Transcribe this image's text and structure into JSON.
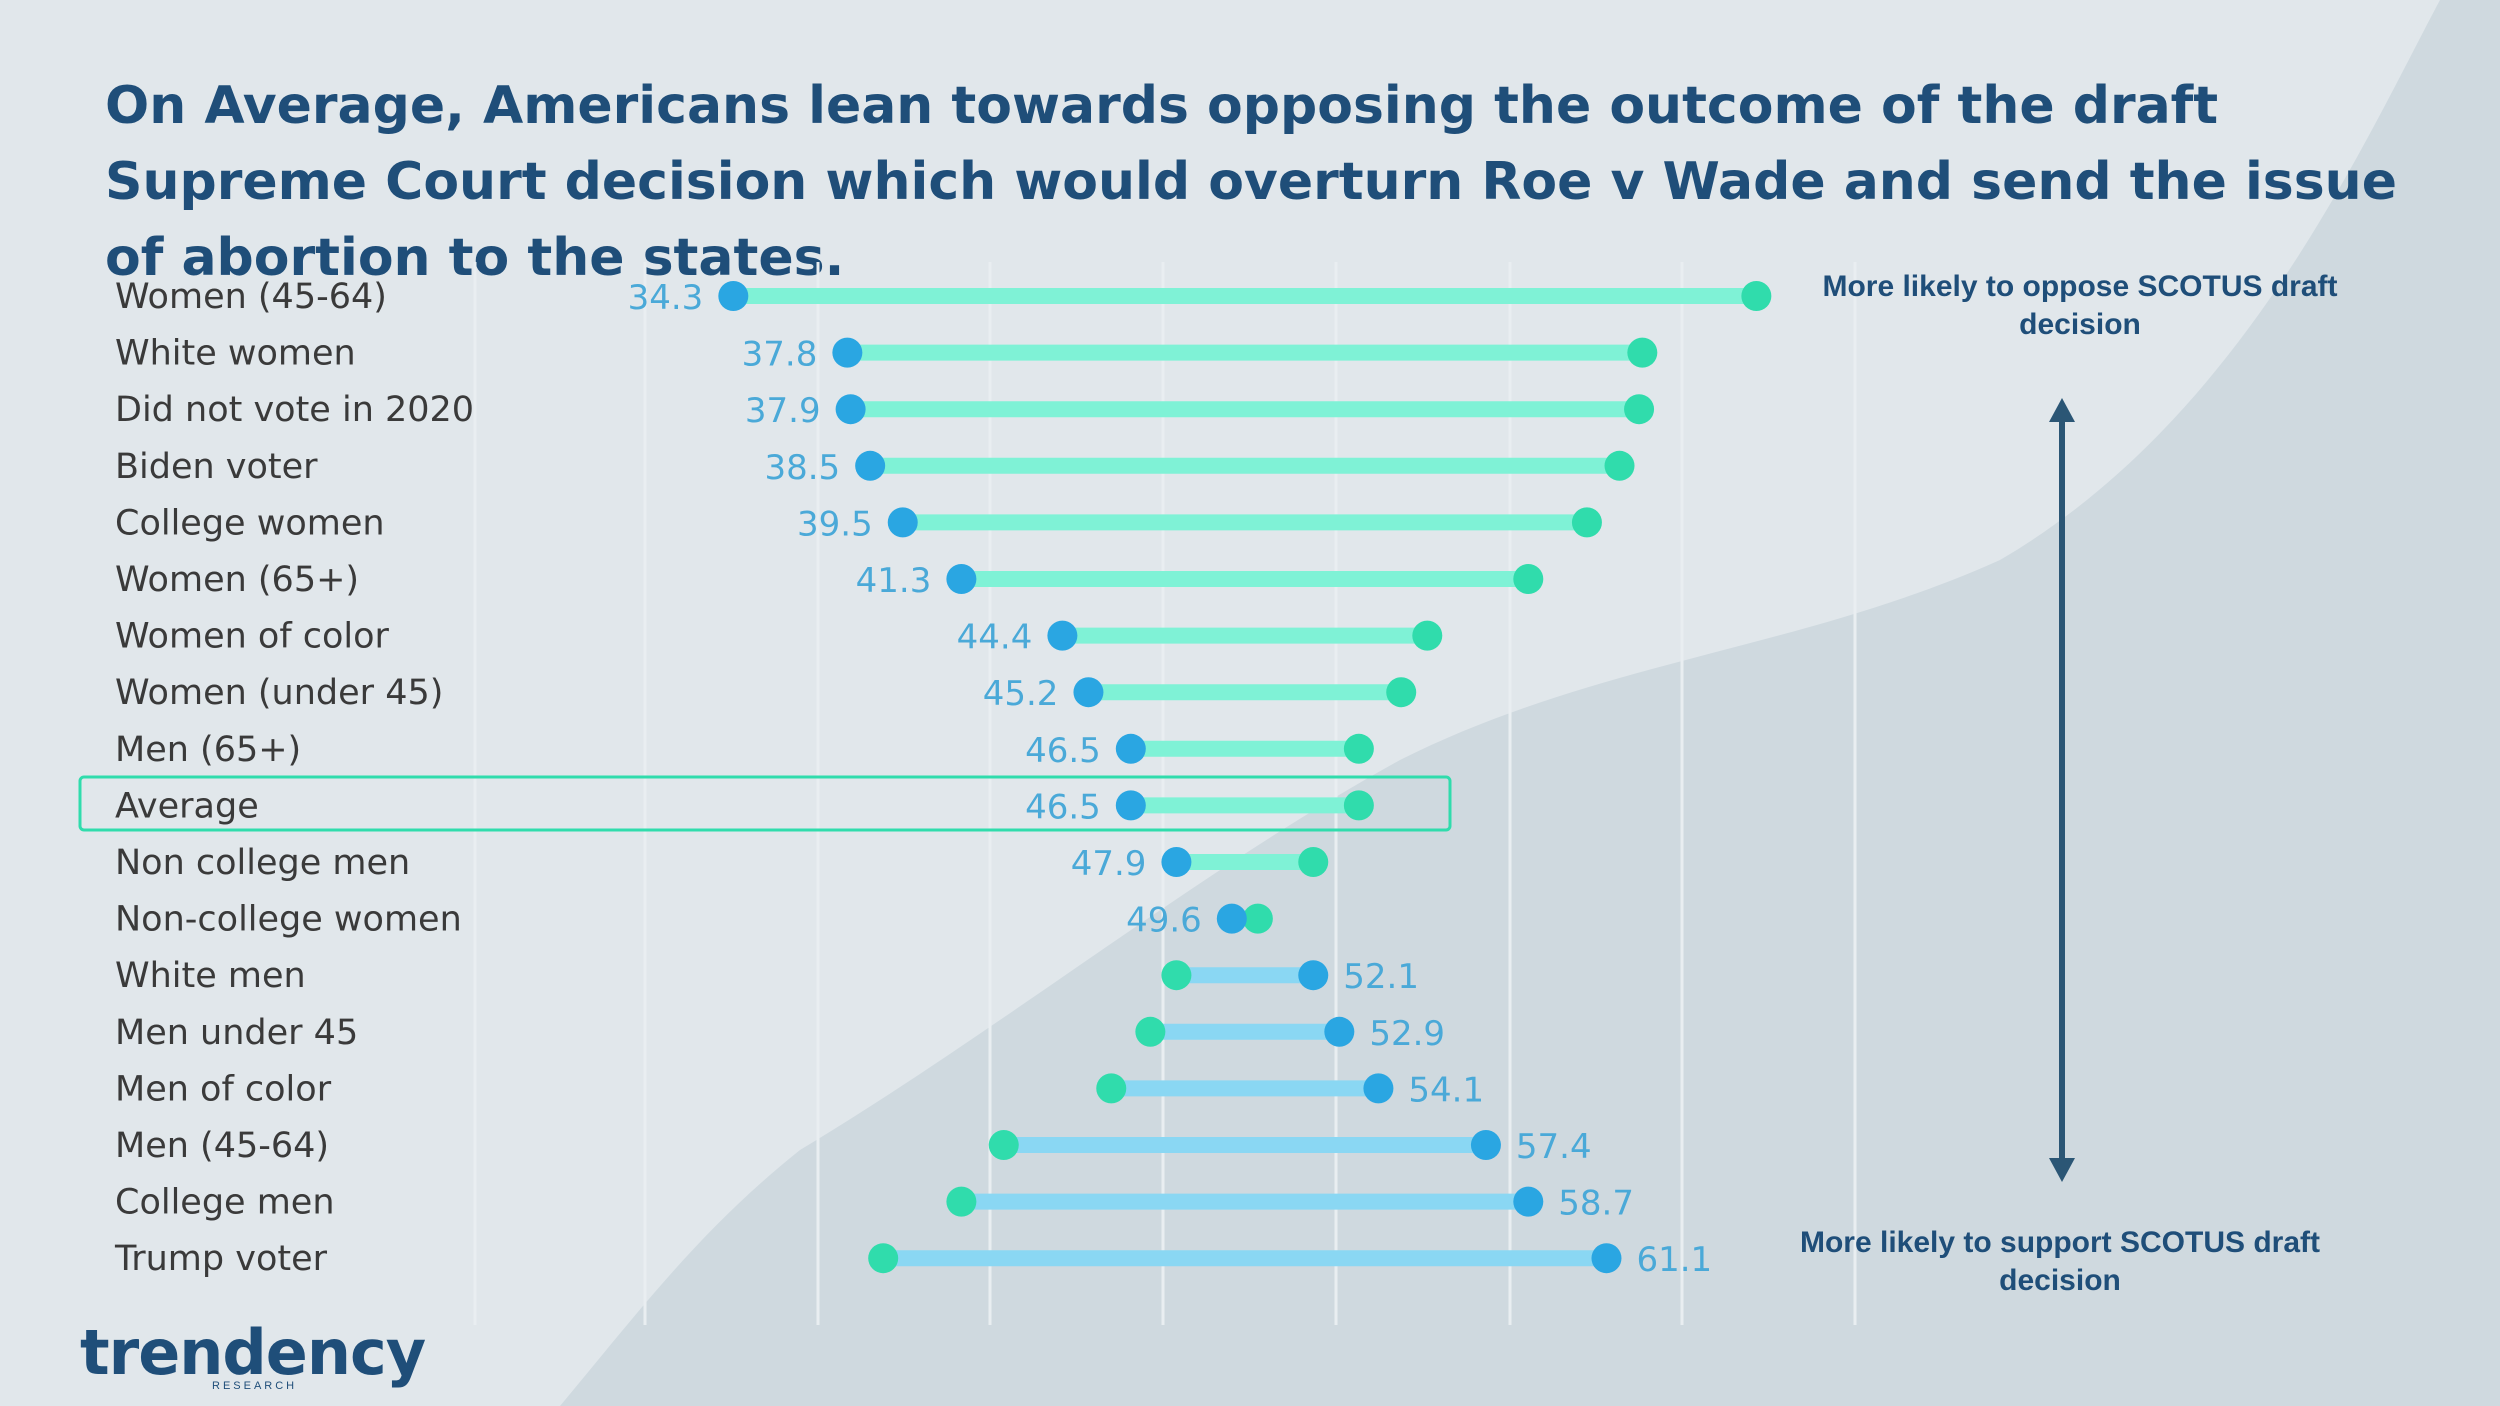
{
  "title": "On Average, Americans lean towards opposing the outcome of the draft  Supreme Court decision which would overturn Roe v Wade and send the issue of abortion to the states.",
  "notes": {
    "oppose": "More likely to oppose SCOTUS draft decision",
    "support": "More likely to support SCOTUS draft decision"
  },
  "logo": {
    "text": "trendency",
    "subtitle": "RESEARCH"
  },
  "colors": {
    "background": "#cfd9df",
    "background_light": "#e1e7eb",
    "title": "#1f4e79",
    "teal": "#30dcac",
    "teal_bar": "#7ff2d6",
    "blue": "#2aa6e2",
    "blue_bar": "#8ad7f3",
    "value_text": "#4aa9d8",
    "highlight_border": "#30dcac"
  },
  "chart_data": {
    "type": "dumbbell",
    "title": "On Average, Americans lean towards opposing the outcome of the draft  Supreme Court decision which would overturn Roe v Wade and send the issue of abortion to the states.",
    "xlim": [
      21,
      83
    ],
    "highlighted_category": "Average",
    "categories": [
      "Women (45-64)",
      "White women",
      "Did not vote in 2020",
      "Biden voter",
      "College women",
      "Women (65+)",
      "Women of color",
      "Women (under 45)",
      "Men (65+)",
      "Average",
      "Non college men",
      "Non-college women",
      "White men",
      "Men under 45",
      "Men of color",
      "Men (45-64)",
      "College men",
      "Trump voter"
    ],
    "series": [
      {
        "name": "labeled value (blue)",
        "values": [
          34.3,
          37.8,
          37.9,
          38.5,
          39.5,
          41.3,
          44.4,
          45.2,
          46.5,
          46.5,
          47.9,
          49.6,
          52.1,
          52.9,
          54.1,
          57.4,
          58.7,
          61.1
        ]
      },
      {
        "name": "other endpoint (teal)",
        "values": [
          65.7,
          62.2,
          62.1,
          61.5,
          60.5,
          58.7,
          55.6,
          54.8,
          53.5,
          53.5,
          52.1,
          50.4,
          47.9,
          47.1,
          45.9,
          42.6,
          41.3,
          38.9
        ]
      }
    ],
    "value_labels": [
      "34.3",
      "37.8",
      "37.9",
      "38.5",
      "39.5",
      "41.3",
      "44.4",
      "45.2",
      "46.5",
      "46.5",
      "47.9",
      "49.6",
      "52.1",
      "52.9",
      "54.1",
      "57.4",
      "58.7",
      "61.1"
    ]
  }
}
